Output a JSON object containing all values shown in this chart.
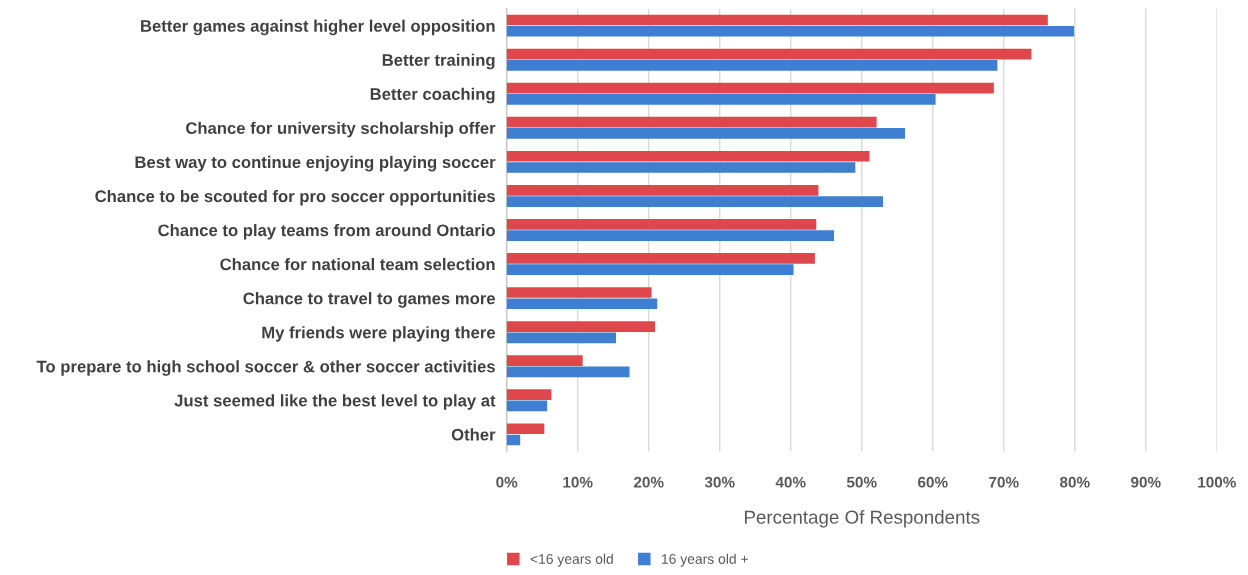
{
  "chart_data": {
    "type": "bar",
    "orientation": "horizontal",
    "categories": [
      "Better games against higher level opposition",
      "Better training",
      "Better coaching",
      "Chance for university scholarship offer",
      "Best way to continue enjoying playing soccer",
      "Chance to be scouted for pro soccer opportunities",
      "Chance to play teams from around Ontario",
      "Chance for national team selection",
      "Chance to travel to games more",
      "My friends were playing there",
      "To prepare to high school soccer & other soccer activities",
      "Just seemed like the best level to play at",
      "Other"
    ],
    "series": [
      {
        "name": "<16 years old",
        "color": "#e0474c",
        "values": [
          76.2,
          73.9,
          68.6,
          52.1,
          51.1,
          43.9,
          43.6,
          43.4,
          20.4,
          20.9,
          10.7,
          6.3,
          5.3
        ]
      },
      {
        "name": "16 years old +",
        "color": "#3e7fd2",
        "values": [
          79.9,
          69.1,
          60.4,
          56.1,
          49.1,
          53.0,
          46.1,
          40.4,
          21.2,
          15.4,
          17.3,
          5.7,
          1.9
        ]
      }
    ],
    "xlabel": "Percentage Of Respondents",
    "xlim": [
      0,
      100
    ],
    "xticks": [
      {
        "value": 0,
        "label": "0%"
      },
      {
        "value": 10,
        "label": "10%"
      },
      {
        "value": 20,
        "label": "20%"
      },
      {
        "value": 30,
        "label": "30%"
      },
      {
        "value": 40,
        "label": "40%"
      },
      {
        "value": 50,
        "label": "50%"
      },
      {
        "value": 60,
        "label": "60%"
      },
      {
        "value": 70,
        "label": "70%"
      },
      {
        "value": 80,
        "label": "80%"
      },
      {
        "value": 90,
        "label": "90%"
      },
      {
        "value": 100,
        "label": "100%"
      }
    ],
    "grid": "x",
    "legend": "bottom"
  }
}
